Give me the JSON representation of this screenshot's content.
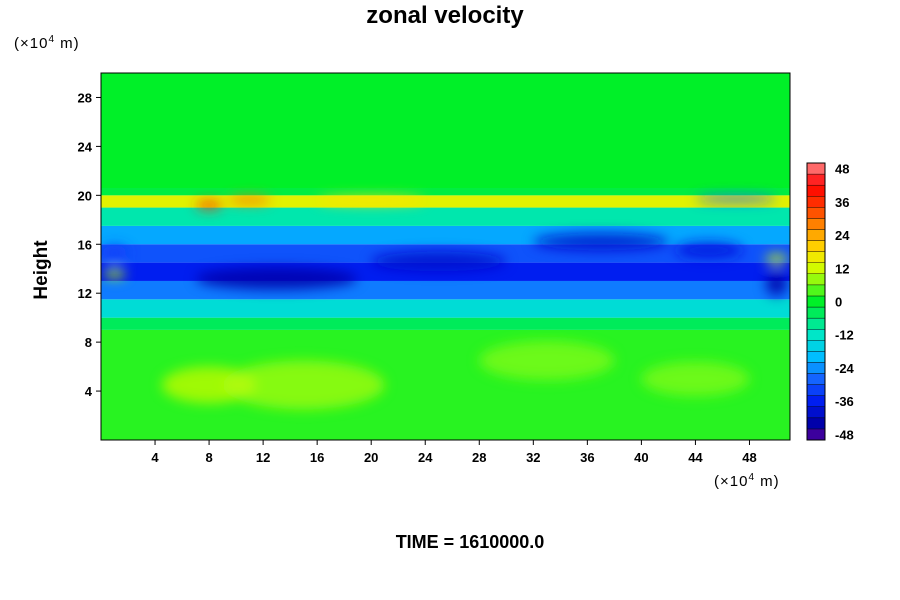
{
  "chart_data": {
    "type": "heatmap",
    "title": "zonal velocity",
    "ylabel": "Height",
    "x_unit": {
      "prefix": "(×10",
      "exp": "4",
      "suffix": " m)"
    },
    "y_unit": {
      "prefix": "(×10",
      "exp": "4",
      "suffix": " m)"
    },
    "xlim": [
      0,
      51
    ],
    "ylim": [
      0,
      30
    ],
    "xticks": [
      4,
      8,
      12,
      16,
      20,
      24,
      28,
      32,
      36,
      40,
      44,
      48
    ],
    "yticks": [
      4,
      8,
      12,
      16,
      20,
      24,
      28
    ],
    "colorbar": {
      "min": -50,
      "max": 50,
      "step": 4,
      "ticks": [
        48,
        36,
        24,
        12,
        0,
        -12,
        -24,
        -36,
        -48
      ]
    },
    "bands": [
      {
        "y": [
          0,
          9.0
        ],
        "value": 2
      },
      {
        "y": [
          9.0,
          10.0
        ],
        "value": -4
      },
      {
        "y": [
          10.0,
          11.5
        ],
        "value": -14
      },
      {
        "y": [
          11.5,
          13.0
        ],
        "value": -26
      },
      {
        "y": [
          13.0,
          14.5
        ],
        "value": -36
      },
      {
        "y": [
          14.5,
          16.0
        ],
        "value": -30
      },
      {
        "y": [
          16.0,
          17.5
        ],
        "value": -22
      },
      {
        "y": [
          17.5,
          19.0
        ],
        "value": -10
      },
      {
        "y": [
          19.0,
          20.0
        ],
        "value": 14
      },
      {
        "y": [
          20.0,
          20.6
        ],
        "value": -2
      },
      {
        "y": [
          20.6,
          30
        ],
        "value": 0
      }
    ],
    "features": [
      {
        "x": 8,
        "y": 19.2,
        "rx": 1.0,
        "ry": 0.35,
        "value": 36
      },
      {
        "x": 11,
        "y": 19.6,
        "rx": 1.6,
        "ry": 0.3,
        "value": 30
      },
      {
        "x": 20,
        "y": 19.6,
        "rx": 4.0,
        "ry": 0.35,
        "value": 18
      },
      {
        "x": 13,
        "y": 13.2,
        "rx": 6.0,
        "ry": 0.9,
        "value": -44
      },
      {
        "x": 25,
        "y": 14.6,
        "rx": 5.0,
        "ry": 0.8,
        "value": -40
      },
      {
        "x": 37,
        "y": 16.2,
        "rx": 5.0,
        "ry": 0.7,
        "value": -40
      },
      {
        "x": 45,
        "y": 15.5,
        "rx": 2.5,
        "ry": 0.7,
        "value": -38
      },
      {
        "x": 50,
        "y": 12.8,
        "rx": 0.8,
        "ry": 1.0,
        "value": -44
      },
      {
        "x": 47,
        "y": 19.7,
        "rx": 3.0,
        "ry": 0.3,
        "value": -28
      },
      {
        "x": 1,
        "y": 15.3,
        "rx": 1.0,
        "ry": 0.6,
        "value": -32
      },
      {
        "x": 50,
        "y": 14.8,
        "rx": 0.8,
        "ry": 0.4,
        "value": 12
      },
      {
        "x": 1,
        "y": 13.6,
        "rx": 0.8,
        "ry": 0.4,
        "value": 10
      },
      {
        "x": 15,
        "y": 4.5,
        "rx": 6.0,
        "ry": 2.0,
        "value": 8
      },
      {
        "x": 8,
        "y": 4.5,
        "rx": 3.5,
        "ry": 1.5,
        "value": 10
      },
      {
        "x": 33,
        "y": 6.5,
        "rx": 5.0,
        "ry": 1.6,
        "value": 6
      },
      {
        "x": 44,
        "y": 5.0,
        "rx": 4.0,
        "ry": 1.4,
        "value": 6
      }
    ]
  },
  "footer": "TIME = 1610000.0"
}
